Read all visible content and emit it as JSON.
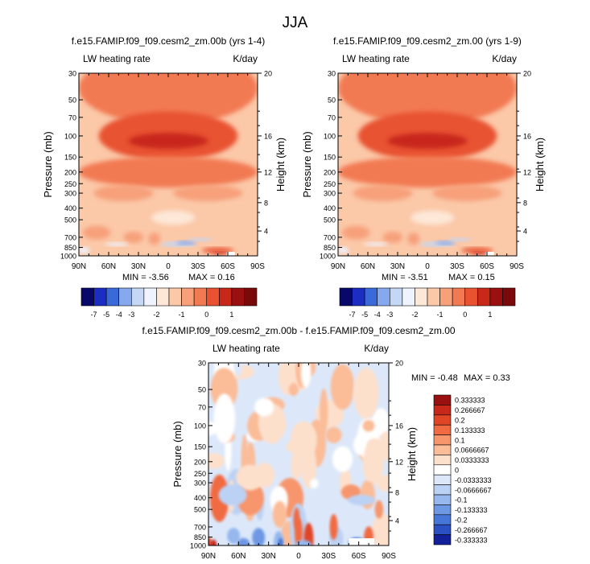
{
  "figure": {
    "title": "JJA"
  },
  "chart_data": [
    {
      "type": "heatmap",
      "title": "f.e15.FAMIP.f09_f09.cesm2_zm.00b (yrs 1-4)",
      "left_label": "LW heating rate",
      "right_label": "K/day",
      "xlabel": "",
      "ylabel": "Pressure (mb)",
      "ylabel_right": "Height (km)",
      "x_ticks": [
        "90N",
        "60N",
        "30N",
        "0",
        "30S",
        "60S",
        "90S"
      ],
      "y_ticks": [
        "30",
        "50",
        "70",
        "100",
        "150",
        "200",
        "250",
        "300",
        "400",
        "500",
        "700",
        "850",
        "1000"
      ],
      "y_ticks_right": [
        "20",
        "16",
        "12",
        "8",
        "4"
      ],
      "min_text": "MIN = -3.56",
      "max_text": "MAX = 0.16",
      "min": -3.56,
      "max": 0.16,
      "colorbar_labels": [
        "-7",
        "-5",
        "-4",
        "-3",
        "-2",
        "-1",
        "0",
        "1"
      ],
      "colorbar_colors": [
        "#08086a",
        "#1c2ec2",
        "#3a6ad8",
        "#86a8ec",
        "#c4d8f6",
        "#eef3fd",
        "#fde8d8",
        "#fbc8a8",
        "#f7a07a",
        "#f27a52",
        "#e85230",
        "#c8281a",
        "#9a0f10",
        "#7a0a0a"
      ]
    },
    {
      "type": "heatmap",
      "title": "f.e15.FAMIP.f09_f09.cesm2_zm.00 (yrs 1-9)",
      "left_label": "LW heating rate",
      "right_label": "K/day",
      "xlabel": "",
      "ylabel": "Pressure (mb)",
      "ylabel_right": "Height (km)",
      "x_ticks": [
        "90N",
        "60N",
        "30N",
        "0",
        "30S",
        "60S",
        "90S"
      ],
      "y_ticks": [
        "30",
        "50",
        "70",
        "100",
        "150",
        "200",
        "250",
        "300",
        "400",
        "500",
        "700",
        "850",
        "1000"
      ],
      "y_ticks_right": [
        "20",
        "16",
        "12",
        "8",
        "4"
      ],
      "min_text": "MIN = -3.51",
      "max_text": "MAX = 0.15",
      "min": -3.51,
      "max": 0.15,
      "colorbar_labels": [
        "-7",
        "-5",
        "-4",
        "-3",
        "-2",
        "-1",
        "0",
        "1"
      ],
      "colorbar_colors": [
        "#08086a",
        "#1c2ec2",
        "#3a6ad8",
        "#86a8ec",
        "#c4d8f6",
        "#eef3fd",
        "#fde8d8",
        "#fbc8a8",
        "#f7a07a",
        "#f27a52",
        "#e85230",
        "#c8281a",
        "#9a0f10",
        "#7a0a0a"
      ]
    },
    {
      "type": "heatmap",
      "title": "f.e15.FAMIP.f09_f09.cesm2_zm.00b - f.e15.FAMIP.f09_f09.cesm2_zm.00",
      "left_label": "LW heating rate",
      "right_label": "K/day",
      "xlabel": "",
      "ylabel": "Pressure (mb)",
      "ylabel_right": "Height (km)",
      "x_ticks": [
        "90N",
        "60N",
        "30N",
        "0",
        "30S",
        "60S",
        "90S"
      ],
      "y_ticks": [
        "30",
        "50",
        "70",
        "100",
        "150",
        "200",
        "250",
        "300",
        "400",
        "500",
        "700",
        "850",
        "1000"
      ],
      "y_ticks_right": [
        "20",
        "16",
        "12",
        "8",
        "4"
      ],
      "min_text": "MIN = -0.48",
      "max_text": "MAX = 0.33",
      "min": -0.48,
      "max": 0.33,
      "colorbar_labels": [
        "0.333333",
        "0.266667",
        "0.2",
        "0.133333",
        "0.1",
        "0.0666667",
        "0.0333333",
        "0",
        "-0.0333333",
        "-0.0666667",
        "-0.1",
        "-0.133333",
        "-0.2",
        "-0.266667",
        "-0.333333"
      ],
      "colorbar_colors": [
        "#9a0f10",
        "#c8281a",
        "#e04526",
        "#f06a42",
        "#f7956c",
        "#fbbc98",
        "#fde0cc",
        "#ffffff",
        "#dce8fa",
        "#bcd2f4",
        "#96b8ee",
        "#6e98e4",
        "#4676d8",
        "#2a50c4",
        "#12209a"
      ]
    }
  ]
}
